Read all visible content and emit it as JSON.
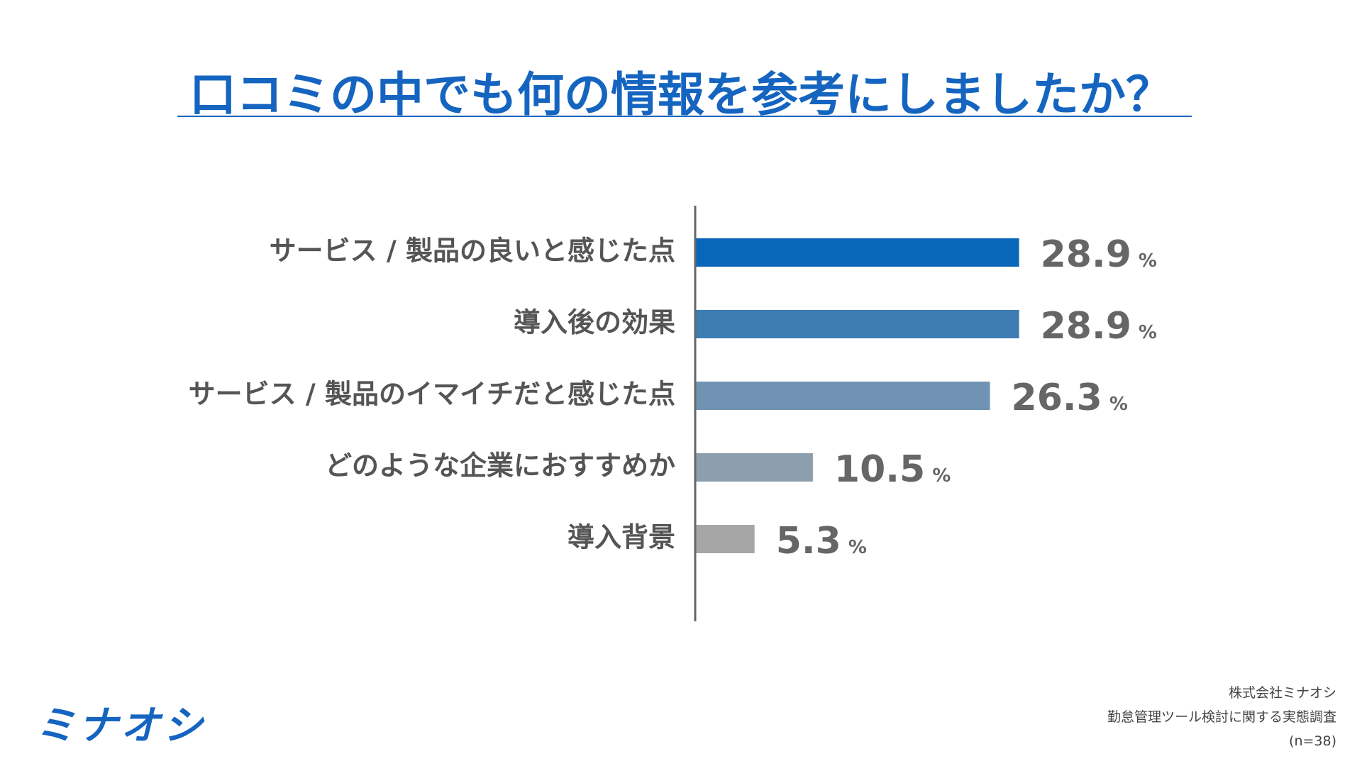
{
  "title": "口コミの中でも何の情報を参考にしましたか？",
  "chart_data": {
    "type": "bar",
    "orientation": "horizontal",
    "title": "口コミの中でも何の情報を参考にしましたか？",
    "categories": [
      "サービス / 製品の良いと感じた点",
      "導入後の効果",
      "サービス / 製品のイマイチだと感じた点",
      "どのような企業におすすめか",
      "導入背景"
    ],
    "values": [
      28.9,
      28.9,
      26.3,
      10.5,
      5.3
    ],
    "value_labels": [
      "28.9",
      "28.9",
      "26.3",
      "10.5",
      "5.3"
    ],
    "unit": "%",
    "bar_colors": [
      "#0a66b8",
      "#3d7cb3",
      "#7093b3",
      "#8d9eae",
      "#a6a6a6"
    ],
    "grid": false,
    "legend": "none"
  },
  "logo": {
    "text": "ミナオシ"
  },
  "footer": {
    "company": "株式会社ミナオシ",
    "survey": "勤怠管理ツール検討に関する実態調査",
    "sample": "(n=38)"
  },
  "colors": {
    "accent": "#1565c0",
    "label_text": "#555555",
    "axis": "#666666"
  }
}
